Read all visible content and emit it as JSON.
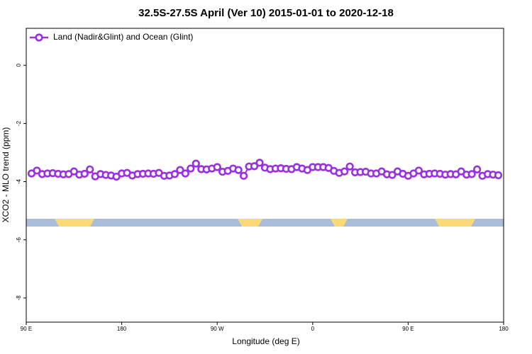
{
  "chart_data": {
    "type": "line",
    "title": "32.5S-27.5S April (Ver 10)   2015-01-01 to 2020-12-18",
    "xlabel": "Longitude (deg E)",
    "ylabel": "XCO2 - MLO trend (ppm)",
    "x": [
      95,
      100,
      105,
      110,
      115,
      120,
      125,
      130,
      135,
      140,
      145,
      150,
      155,
      160,
      165,
      170,
      175,
      180,
      185,
      190,
      195,
      200,
      205,
      210,
      215,
      220,
      225,
      230,
      235,
      240,
      245,
      250,
      255,
      260,
      265,
      270,
      275,
      280,
      285,
      290,
      295,
      300,
      305,
      310,
      315,
      320,
      325,
      330,
      335,
      340,
      345,
      350,
      355,
      360,
      365,
      370,
      375,
      380,
      385,
      390,
      395,
      400,
      405,
      410,
      415,
      420,
      425,
      430,
      435,
      440,
      445,
      450,
      455,
      460,
      465,
      470,
      475,
      480,
      485,
      490,
      495,
      500,
      505,
      510,
      515,
      520,
      525,
      530,
      535
    ],
    "series": [
      {
        "name": "Land (Nadir&Glint) and Ocean (Glint)",
        "color": "#9b30e0",
        "values": [
          -3.72,
          -3.62,
          -3.74,
          -3.72,
          -3.71,
          -3.73,
          -3.75,
          -3.74,
          -3.65,
          -3.76,
          -3.73,
          -3.58,
          -3.82,
          -3.74,
          -3.77,
          -3.79,
          -3.83,
          -3.72,
          -3.7,
          -3.79,
          -3.74,
          -3.73,
          -3.72,
          -3.73,
          -3.7,
          -3.8,
          -3.79,
          -3.74,
          -3.6,
          -3.72,
          -3.55,
          -3.38,
          -3.57,
          -3.58,
          -3.55,
          -3.5,
          -3.66,
          -3.63,
          -3.55,
          -3.6,
          -3.8,
          -3.48,
          -3.47,
          -3.35,
          -3.52,
          -3.57,
          -3.55,
          -3.54,
          -3.56,
          -3.57,
          -3.5,
          -3.55,
          -3.6,
          -3.5,
          -3.5,
          -3.5,
          -3.53,
          -3.63,
          -3.7,
          -3.65,
          -3.48,
          -3.68,
          -3.67,
          -3.66,
          -3.72,
          -3.72,
          -3.65,
          -3.75,
          -3.77,
          -3.65,
          -3.73,
          -3.8,
          -3.72,
          -3.62,
          -3.75,
          -3.73,
          -3.72,
          -3.73,
          -3.76,
          -3.74,
          -3.75,
          -3.65,
          -3.76,
          -3.74,
          -3.58,
          -3.8,
          -3.74,
          -3.76,
          -3.78
        ]
      }
    ],
    "xlim": [
      90,
      540
    ],
    "xticks": [
      {
        "value": 90,
        "label": "90 E"
      },
      180,
      {
        "value": 270,
        "label": "90 W"
      },
      {
        "value": 360,
        "label": "0"
      },
      {
        "value": 450,
        "label": "90 E"
      },
      {
        "value": 540,
        "label": "180"
      }
    ],
    "ylim": [
      -8.83,
      1.27
    ],
    "yticks": [
      0,
      -2,
      -4,
      -6,
      -8
    ],
    "legend": "top-left"
  }
}
